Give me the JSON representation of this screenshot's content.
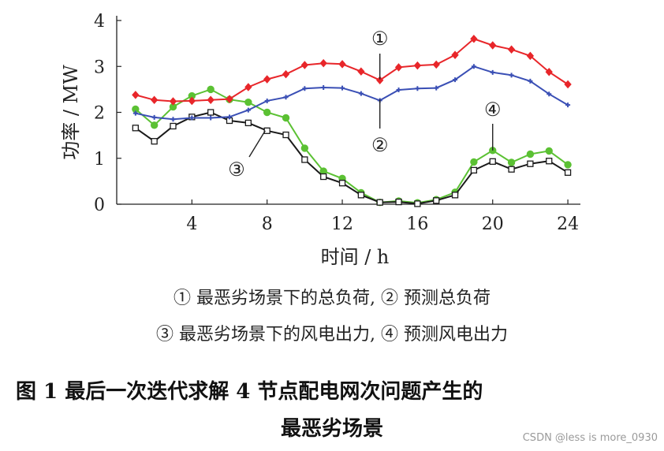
{
  "chart_data": {
    "type": "line",
    "ylabel": "功率 / MW",
    "xlabel": "时间 / h",
    "xlim": [
      0,
      24.5
    ],
    "ylim": [
      0,
      4
    ],
    "xticks": [
      4,
      8,
      12,
      16,
      20,
      24
    ],
    "yticks": [
      0,
      1,
      2,
      3,
      4
    ],
    "x": [
      1,
      2,
      3,
      4,
      5,
      6,
      7,
      8,
      9,
      10,
      11,
      12,
      13,
      14,
      15,
      16,
      17,
      18,
      19,
      20,
      21,
      22,
      23,
      24
    ],
    "series": [
      {
        "name": "①",
        "color": "#e8262a",
        "marker": "diamond",
        "values": [
          2.38,
          2.27,
          2.24,
          2.25,
          2.27,
          2.29,
          2.55,
          2.72,
          2.83,
          3.03,
          3.07,
          3.05,
          2.89,
          2.7,
          2.98,
          3.02,
          3.04,
          3.25,
          3.6,
          3.46,
          3.37,
          3.23,
          2.88,
          2.61
        ]
      },
      {
        "name": "②",
        "color": "#3a4fb5",
        "marker": "plus",
        "values": [
          1.98,
          1.89,
          1.85,
          1.88,
          1.88,
          1.9,
          2.05,
          2.25,
          2.33,
          2.52,
          2.54,
          2.53,
          2.41,
          2.26,
          2.49,
          2.52,
          2.53,
          2.71,
          3.0,
          2.87,
          2.81,
          2.68,
          2.4,
          2.16
        ]
      },
      {
        "name": "③",
        "color": "#1a1a1a",
        "marker": "square",
        "values": [
          1.66,
          1.37,
          1.7,
          1.9,
          2.0,
          1.82,
          1.77,
          1.6,
          1.51,
          0.97,
          0.6,
          0.46,
          0.2,
          0.04,
          0.05,
          0.01,
          0.08,
          0.2,
          0.74,
          0.93,
          0.76,
          0.88,
          0.94,
          0.69
        ]
      },
      {
        "name": "④",
        "color": "#5bc133",
        "marker": "circle",
        "values": [
          2.07,
          1.72,
          2.12,
          2.36,
          2.5,
          2.28,
          2.22,
          2.0,
          1.88,
          1.22,
          0.72,
          0.56,
          0.25,
          0.04,
          0.07,
          0.03,
          0.1,
          0.26,
          0.92,
          1.17,
          0.91,
          1.09,
          1.16,
          0.86
        ]
      }
    ]
  },
  "annotations": {
    "c1": "①",
    "c2": "②",
    "c3": "③",
    "c4": "④"
  },
  "legend": {
    "line1": "① 最恶劣场景下的总负荷, ② 预测总负荷",
    "line2": "③ 最恶劣场景下的风电出力, ④ 预测风电出力"
  },
  "caption": {
    "line1": "图 1   最后一次迭代求解 4 节点配电网次问题产生的",
    "line2": "最恶劣场景"
  },
  "watermark": "CSDN @less is more_0930"
}
